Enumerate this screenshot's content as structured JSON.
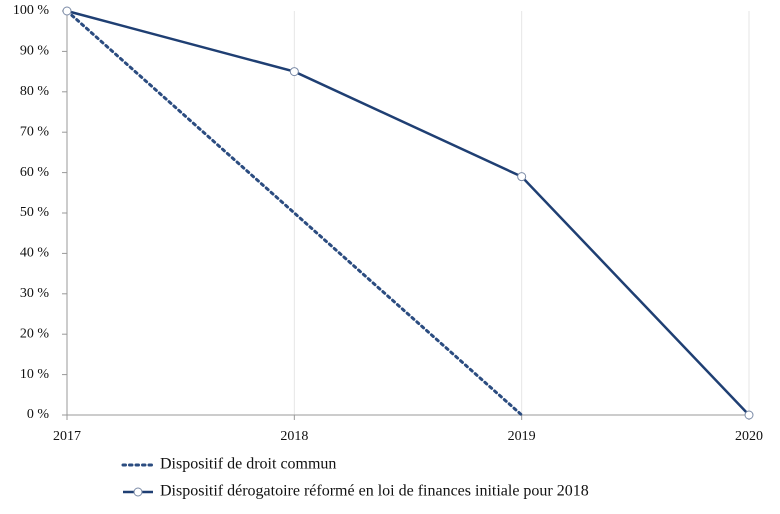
{
  "chart_data": {
    "type": "line",
    "x": [
      2017,
      2018,
      2019,
      2020
    ],
    "xlim": [
      2017,
      2020
    ],
    "xticks": [
      2017,
      2018,
      2019,
      2020
    ],
    "ylim": [
      0,
      100
    ],
    "yticks": [
      {
        "value": 0,
        "label": "0 %"
      },
      {
        "value": 10,
        "label": "10 %"
      },
      {
        "value": 20,
        "label": "20 %"
      },
      {
        "value": 30,
        "label": "30 %"
      },
      {
        "value": 40,
        "label": "40 %"
      },
      {
        "value": 50,
        "label": "50 %"
      },
      {
        "value": 60,
        "label": "60 %"
      },
      {
        "value": 70,
        "label": "70 %"
      },
      {
        "value": 80,
        "label": "80 %"
      },
      {
        "value": 90,
        "label": "90 %"
      },
      {
        "value": 100,
        "label": "100 %"
      }
    ],
    "grid": "x",
    "legend": "bottom",
    "series": [
      {
        "name": "Dispositif de droit commun",
        "color": "#2b4c80",
        "linestyle": "dotted",
        "marker": "none",
        "values": [
          100,
          50,
          0,
          null
        ]
      },
      {
        "name": "Dispositif dérogatoire réformé en loi de finances initiale pour 2018",
        "color": "#1f3f73",
        "linestyle": "solid",
        "marker": "circle",
        "values": [
          100,
          85,
          59,
          0
        ]
      }
    ]
  }
}
